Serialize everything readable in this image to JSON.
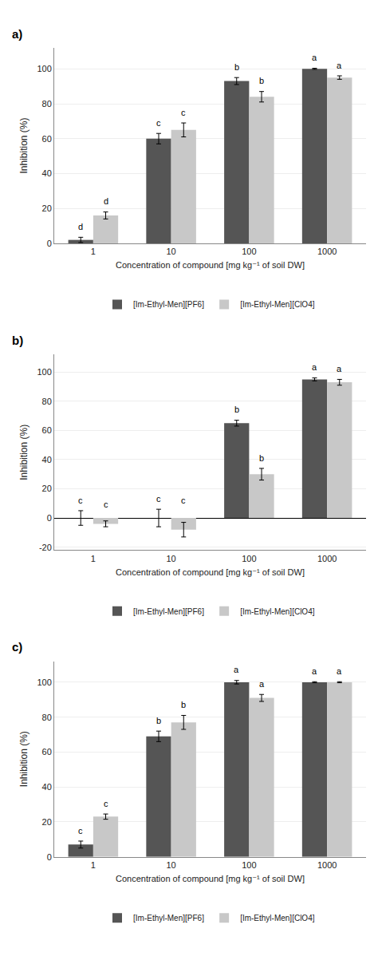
{
  "chart_data": [
    {
      "type": "bar",
      "title": "a)",
      "xlabel": "Concentration of compound [mg kg⁻¹ of soil DW]",
      "ylabel": "Inhibition (%)",
      "categories": [
        "1",
        "10",
        "100",
        "1000"
      ],
      "series": [
        {
          "name": "[Im-Ethyl-Men][PF6]",
          "color": "#555555",
          "values": [
            2,
            60,
            93,
            100
          ],
          "errors": [
            1.5,
            3,
            2,
            0.3
          ],
          "letters": [
            "d",
            "c",
            "b",
            "a"
          ]
        },
        {
          "name": "[Im-Ethyl-Men][ClO4]",
          "color": "#c8c8c8",
          "values": [
            16,
            65,
            84,
            95
          ],
          "errors": [
            2,
            4,
            3,
            1
          ],
          "letters": [
            "d",
            "c",
            "b",
            "a"
          ]
        }
      ],
      "ylim": [
        0,
        112
      ],
      "yticks": [
        0,
        20,
        40,
        60,
        80,
        100
      ],
      "grid": true,
      "legend": "bottom"
    },
    {
      "type": "bar",
      "title": "b)",
      "xlabel": "Concentration of compound [mg kg⁻¹ of soil DW]",
      "ylabel": "Inhibition (%)",
      "categories": [
        "1",
        "10",
        "100",
        "1000"
      ],
      "series": [
        {
          "name": "[Im-Ethyl-Men][PF6]",
          "color": "#555555",
          "values": [
            0,
            0,
            65,
            95
          ],
          "errors": [
            5,
            6,
            2,
            1
          ],
          "letters": [
            "c",
            "c",
            "b",
            "a"
          ]
        },
        {
          "name": "[Im-Ethyl-Men][ClO4]",
          "color": "#c8c8c8",
          "values": [
            -4,
            -8,
            30,
            93
          ],
          "errors": [
            2,
            5,
            4,
            2
          ],
          "letters": [
            "c",
            "c",
            "b",
            "a"
          ]
        }
      ],
      "ylim": [
        -22,
        112
      ],
      "yticks": [
        -20,
        0,
        20,
        40,
        60,
        80,
        100
      ],
      "grid": true,
      "legend": "bottom"
    },
    {
      "type": "bar",
      "title": "c)",
      "xlabel": "Concentration of compound [mg kg⁻¹ of soil DW]",
      "ylabel": "Inhibition (%)",
      "categories": [
        "1",
        "10",
        "100",
        "1000"
      ],
      "series": [
        {
          "name": "[Im-Ethyl-Men][PF6]",
          "color": "#555555",
          "values": [
            7,
            69,
            100,
            100
          ],
          "errors": [
            2,
            3,
            1,
            0.3
          ],
          "letters": [
            "c",
            "b",
            "a",
            "a"
          ]
        },
        {
          "name": "[Im-Ethyl-Men][ClO4]",
          "color": "#c8c8c8",
          "values": [
            23,
            77,
            91,
            100
          ],
          "errors": [
            1.5,
            4,
            2,
            0.3
          ],
          "letters": [
            "c",
            "b",
            "a",
            "a"
          ]
        }
      ],
      "ylim": [
        0,
        112
      ],
      "yticks": [
        0,
        20,
        40,
        60,
        80,
        100
      ],
      "grid": true,
      "legend": "bottom"
    }
  ]
}
